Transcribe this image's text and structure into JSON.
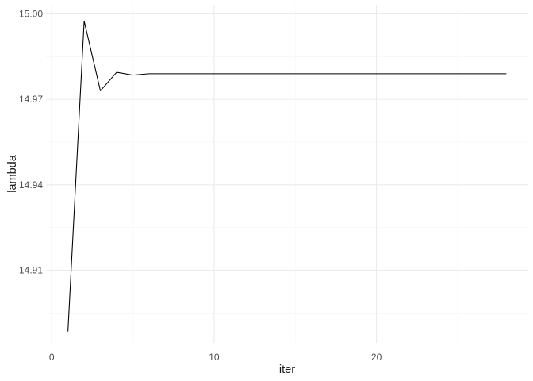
{
  "chart_data": {
    "type": "line",
    "title": "",
    "xlabel": "iter",
    "ylabel": "lambda",
    "x": [
      1,
      2,
      3,
      4,
      5,
      6,
      7,
      8,
      9,
      10,
      11,
      12,
      13,
      14,
      15,
      16,
      17,
      18,
      19,
      20,
      21,
      22,
      23,
      24,
      25,
      26,
      27,
      28
    ],
    "series": [
      {
        "values": [
          14.8885,
          14.9975,
          14.973,
          14.9795,
          14.9785,
          14.979,
          14.979,
          14.979,
          14.979,
          14.979,
          14.979,
          14.979,
          14.979,
          14.979,
          14.979,
          14.979,
          14.979,
          14.979,
          14.979,
          14.979,
          14.979,
          14.979,
          14.979,
          14.979,
          14.979,
          14.979,
          14.979,
          14.979
        ],
        "color": "#000000"
      }
    ],
    "xlim": [
      -0.35,
      29.35
    ],
    "ylim": [
      14.8845,
      15.0032
    ],
    "x_ticks": [
      0,
      10,
      20
    ],
    "x_tick_labels": [
      "0",
      "10",
      "20"
    ],
    "x_minor_ticks": [
      5,
      15,
      25
    ],
    "y_ticks": [
      14.91,
      14.94,
      14.97,
      15.0
    ],
    "y_tick_labels": [
      "14.91",
      "14.94",
      "14.97",
      "15.00"
    ],
    "y_minor_ticks": [
      14.895,
      14.925,
      14.955,
      14.985
    ],
    "grid": true,
    "legend": "none"
  }
}
